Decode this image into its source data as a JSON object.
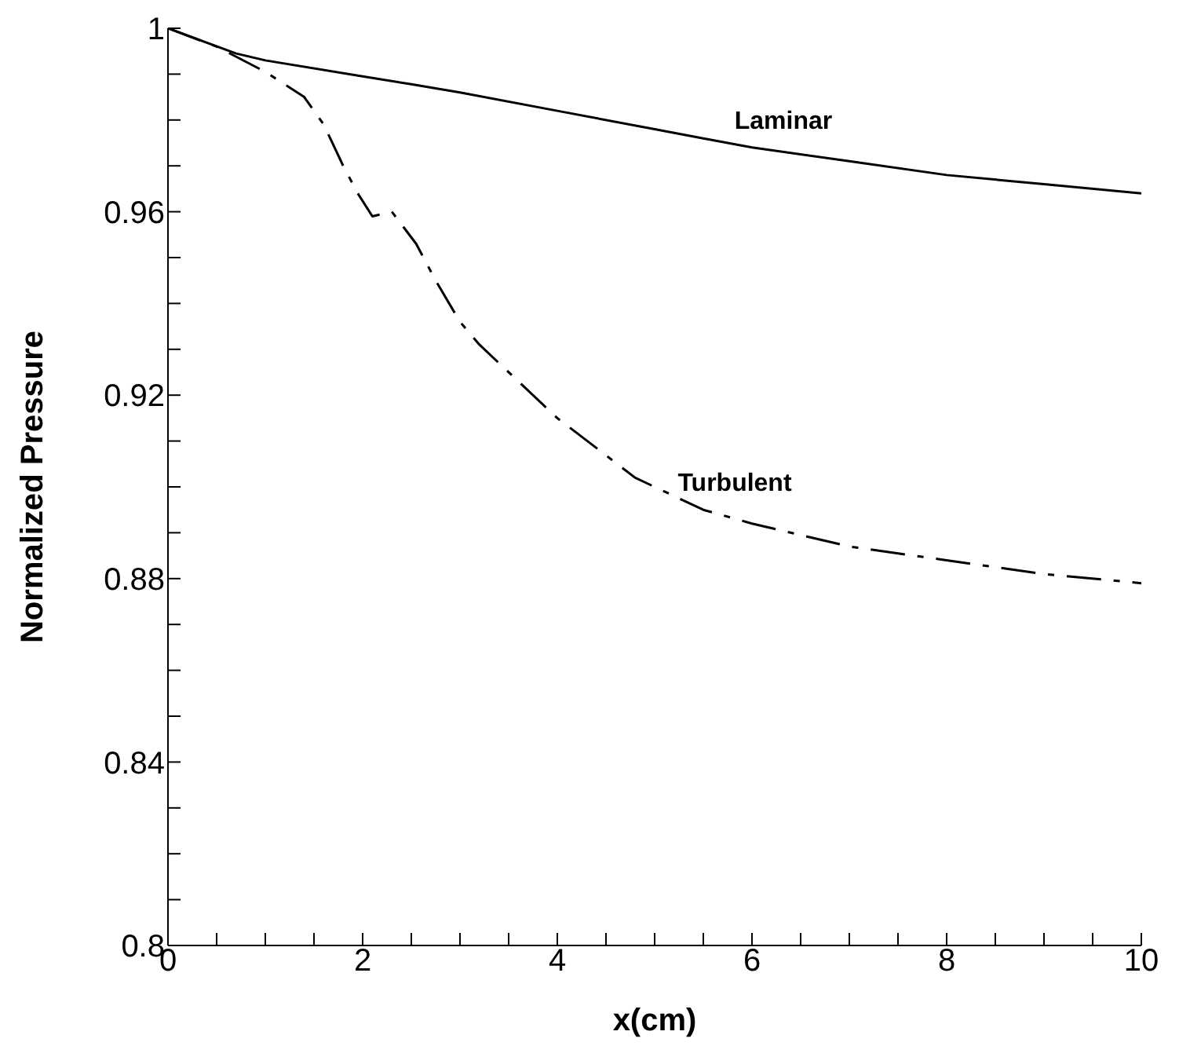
{
  "chart_data": {
    "type": "line",
    "xlabel": "x(cm)",
    "ylabel": "Normalized Pressure",
    "xlim": [
      0,
      10
    ],
    "ylim": [
      0.8,
      1
    ],
    "xticks": [
      0,
      {
        "value": 0.5,
        "label": null
      },
      {
        "value": 1,
        "label": null
      },
      {
        "value": 1.5,
        "label": null
      },
      2,
      {
        "value": 2.5,
        "label": null
      },
      {
        "value": 3,
        "label": null
      },
      {
        "value": 3.5,
        "label": null
      },
      4,
      {
        "value": 4.5,
        "label": null
      },
      {
        "value": 5,
        "label": null
      },
      {
        "value": 5.5,
        "label": null
      },
      6,
      {
        "value": 6.5,
        "label": null
      },
      {
        "value": 7,
        "label": null
      },
      {
        "value": 7.5,
        "label": null
      },
      8,
      {
        "value": 8.5,
        "label": null
      },
      {
        "value": 9,
        "label": null
      },
      {
        "value": 9.5,
        "label": null
      },
      10
    ],
    "yticks": [
      0.8,
      {
        "value": 0.81,
        "label": null
      },
      {
        "value": 0.82,
        "label": null
      },
      {
        "value": 0.83,
        "label": null
      },
      0.84,
      {
        "value": 0.85,
        "label": null
      },
      {
        "value": 0.86,
        "label": null
      },
      {
        "value": 0.87,
        "label": null
      },
      0.88,
      {
        "value": 0.89,
        "label": null
      },
      {
        "value": 0.9,
        "label": null
      },
      {
        "value": 0.91,
        "label": null
      },
      0.92,
      {
        "value": 0.93,
        "label": null
      },
      {
        "value": 0.94,
        "label": null
      },
      {
        "value": 0.95,
        "label": null
      },
      0.96,
      {
        "value": 0.97,
        "label": null
      },
      {
        "value": 0.98,
        "label": null
      },
      {
        "value": 0.99,
        "label": null
      },
      1
    ],
    "grid": false,
    "legend": false,
    "marker": "none",
    "series": [
      {
        "name": "Laminar",
        "color": "#000000",
        "line_style": "solid",
        "x": [
          0,
          0.7,
          1,
          2,
          2.5,
          3,
          4,
          5,
          5.5,
          6,
          7,
          8,
          9,
          10
        ],
        "values": [
          1,
          0.9945,
          0.993,
          0.9895,
          0.9878,
          0.986,
          0.982,
          0.978,
          0.976,
          0.974,
          0.971,
          0.968,
          0.966,
          0.964
        ]
      },
      {
        "name": "Turbulent",
        "color": "#000000",
        "line_style": "dashed",
        "x": [
          0,
          0.5,
          1,
          1.4,
          1.6,
          1.8,
          1.95,
          2.1,
          2.3,
          2.55,
          2.75,
          3,
          3.2,
          4,
          4.8,
          5.5,
          6,
          7,
          8,
          9,
          10
        ],
        "values": [
          1,
          0.996,
          0.9905,
          0.985,
          0.979,
          0.97,
          0.964,
          0.959,
          0.96,
          0.953,
          0.945,
          0.936,
          0.931,
          0.915,
          0.902,
          0.895,
          0.892,
          0.887,
          0.884,
          0.881,
          0.879
        ]
      }
    ]
  }
}
